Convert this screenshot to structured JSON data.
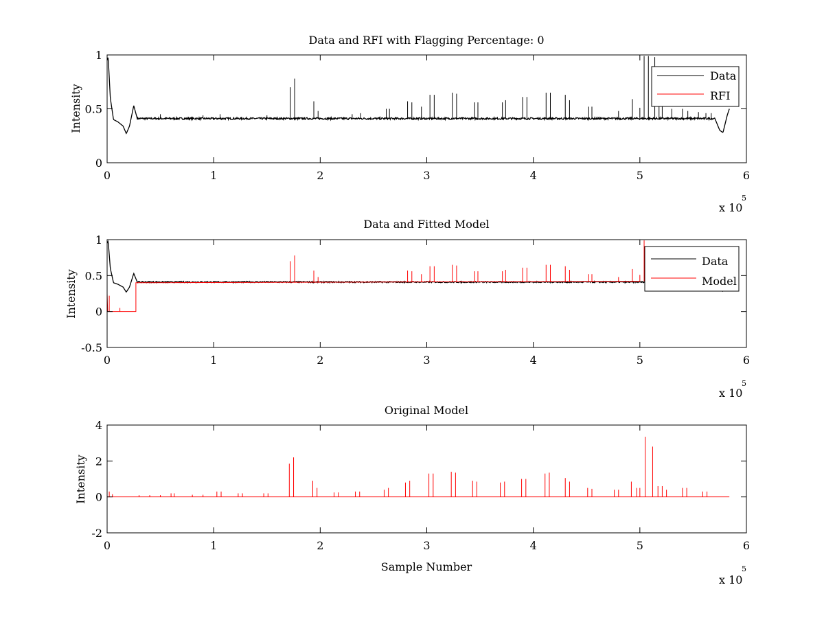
{
  "chart_data": [
    {
      "type": "line",
      "title": "Data and RFI with Flagging Percentage: 0",
      "xlabel": "",
      "ylabel": "Intensity",
      "xlim": [
        0,
        6
      ],
      "ylim": [
        0,
        1
      ],
      "x_scale_note": "x 10",
      "x_scale_exponent": "5",
      "xticks": [
        "0",
        "1",
        "2",
        "3",
        "4",
        "5",
        "6"
      ],
      "yticks": [
        "0",
        "0.5",
        "1"
      ],
      "legend": {
        "placement": "top-right",
        "entries": [
          "Data",
          "RFI"
        ]
      },
      "grid": false,
      "series": [
        {
          "name": "Data",
          "color": "#000000",
          "baseline": [
            [
              0,
              0.95
            ],
            [
              0.01,
              0.98
            ],
            [
              0.03,
              0.6
            ],
            [
              0.06,
              0.4
            ],
            [
              0.1,
              0.38
            ],
            [
              0.15,
              0.34
            ],
            [
              0.18,
              0.27
            ],
            [
              0.21,
              0.34
            ],
            [
              0.25,
              0.53
            ],
            [
              0.28,
              0.42
            ],
            [
              5.7,
              0.42
            ],
            [
              5.75,
              0.3
            ],
            [
              5.78,
              0.28
            ],
            [
              5.82,
              0.44
            ],
            [
              5.84,
              0.5
            ]
          ],
          "noise_level": 0.41,
          "spikes": [
            [
              0.5,
              0.45
            ],
            [
              0.9,
              0.44
            ],
            [
              1.06,
              0.45
            ],
            [
              1.5,
              0.44
            ],
            [
              1.72,
              0.7
            ],
            [
              1.76,
              0.78
            ],
            [
              1.94,
              0.57
            ],
            [
              1.98,
              0.48
            ],
            [
              2.3,
              0.45
            ],
            [
              2.38,
              0.46
            ],
            [
              2.62,
              0.5
            ],
            [
              2.65,
              0.5
            ],
            [
              2.82,
              0.57
            ],
            [
              2.86,
              0.56
            ],
            [
              2.95,
              0.52
            ],
            [
              3.03,
              0.63
            ],
            [
              3.07,
              0.63
            ],
            [
              3.24,
              0.65
            ],
            [
              3.28,
              0.64
            ],
            [
              3.45,
              0.56
            ],
            [
              3.48,
              0.56
            ],
            [
              3.71,
              0.56
            ],
            [
              3.74,
              0.58
            ],
            [
              3.9,
              0.61
            ],
            [
              3.94,
              0.61
            ],
            [
              4.12,
              0.65
            ],
            [
              4.16,
              0.65
            ],
            [
              4.3,
              0.63
            ],
            [
              4.34,
              0.58
            ],
            [
              4.52,
              0.52
            ],
            [
              4.55,
              0.52
            ],
            [
              4.8,
              0.48
            ],
            [
              4.93,
              0.59
            ],
            [
              5.0,
              0.51
            ],
            [
              5.04,
              0.99
            ],
            [
              5.08,
              0.99
            ],
            [
              5.14,
              0.98
            ],
            [
              5.18,
              0.54
            ],
            [
              5.21,
              0.54
            ],
            [
              5.3,
              0.5
            ],
            [
              5.4,
              0.5
            ],
            [
              5.45,
              0.48
            ],
            [
              5.55,
              0.47
            ],
            [
              5.62,
              0.46
            ],
            [
              5.67,
              0.46
            ]
          ]
        },
        {
          "name": "RFI",
          "color": "#ff0000",
          "values": []
        }
      ]
    },
    {
      "type": "line",
      "title": "Data and Fitted Model",
      "xlabel": "",
      "ylabel": "Intensity",
      "xlim": [
        0,
        6
      ],
      "ylim": [
        -0.5,
        1
      ],
      "x_scale_note": "x 10",
      "x_scale_exponent": "5",
      "xticks": [
        "0",
        "1",
        "2",
        "3",
        "4",
        "5",
        "6"
      ],
      "yticks": [
        "-0.5",
        "0",
        "0.5",
        "1"
      ],
      "legend": {
        "placement": "top-right",
        "entries": [
          "Data",
          "Model"
        ]
      },
      "grid": false,
      "series": [
        {
          "name": "Data",
          "color": "#000000",
          "baseline": [
            [
              0,
              0.95
            ],
            [
              0.01,
              0.98
            ],
            [
              0.03,
              0.6
            ],
            [
              0.06,
              0.4
            ],
            [
              0.1,
              0.38
            ],
            [
              0.15,
              0.34
            ],
            [
              0.18,
              0.27
            ],
            [
              0.21,
              0.34
            ],
            [
              0.25,
              0.53
            ],
            [
              0.28,
              0.42
            ],
            [
              5.7,
              0.42
            ],
            [
              5.75,
              0.3
            ],
            [
              5.78,
              0.28
            ],
            [
              5.82,
              0.44
            ],
            [
              5.84,
              0.5
            ]
          ],
          "noise_level": 0.41
        },
        {
          "name": "Model",
          "color": "#ff0000",
          "baseline": [
            [
              0,
              0.25
            ],
            [
              0.005,
              0.0
            ],
            [
              0.27,
              0.0
            ],
            [
              0.27,
              0.4
            ],
            [
              5.0,
              0.42
            ]
          ],
          "spikes": [
            [
              0.02,
              0.22
            ],
            [
              0.12,
              0.05
            ],
            [
              1.72,
              0.7
            ],
            [
              1.76,
              0.78
            ],
            [
              1.94,
              0.57
            ],
            [
              1.98,
              0.48
            ],
            [
              2.82,
              0.57
            ],
            [
              2.86,
              0.56
            ],
            [
              2.95,
              0.52
            ],
            [
              3.03,
              0.63
            ],
            [
              3.07,
              0.63
            ],
            [
              3.24,
              0.65
            ],
            [
              3.28,
              0.64
            ],
            [
              3.45,
              0.56
            ],
            [
              3.48,
              0.56
            ],
            [
              3.71,
              0.56
            ],
            [
              3.74,
              0.58
            ],
            [
              3.9,
              0.61
            ],
            [
              3.94,
              0.61
            ],
            [
              4.12,
              0.65
            ],
            [
              4.16,
              0.65
            ],
            [
              4.3,
              0.63
            ],
            [
              4.34,
              0.58
            ],
            [
              4.52,
              0.52
            ],
            [
              4.55,
              0.52
            ],
            [
              4.8,
              0.48
            ],
            [
              4.93,
              0.59
            ],
            [
              5.0,
              0.51
            ],
            [
              5.04,
              0.99
            ]
          ]
        }
      ]
    },
    {
      "type": "line",
      "title": "Original Model",
      "xlabel": "Sample Number",
      "ylabel": "Intensity",
      "xlim": [
        0,
        6
      ],
      "ylim": [
        -2,
        4
      ],
      "x_scale_note": "x 10",
      "x_scale_exponent": "5",
      "xticks": [
        "0",
        "1",
        "2",
        "3",
        "4",
        "5",
        "6"
      ],
      "yticks": [
        "-2",
        "0",
        "2",
        "4"
      ],
      "grid": false,
      "series": [
        {
          "color": "#ff0000",
          "baseline_value": 0,
          "x_extent": [
            0,
            5.84
          ],
          "spikes": [
            [
              0.02,
              0.3
            ],
            [
              0.05,
              0.15
            ],
            [
              0.3,
              0.1
            ],
            [
              0.4,
              0.1
            ],
            [
              0.5,
              0.1
            ],
            [
              0.6,
              0.2
            ],
            [
              0.63,
              0.2
            ],
            [
              0.8,
              0.12
            ],
            [
              0.9,
              0.12
            ],
            [
              1.03,
              0.3
            ],
            [
              1.07,
              0.3
            ],
            [
              1.23,
              0.2
            ],
            [
              1.27,
              0.2
            ],
            [
              1.47,
              0.2
            ],
            [
              1.51,
              0.2
            ],
            [
              1.71,
              1.85
            ],
            [
              1.75,
              2.2
            ],
            [
              1.93,
              0.9
            ],
            [
              1.97,
              0.5
            ],
            [
              2.13,
              0.25
            ],
            [
              2.17,
              0.25
            ],
            [
              2.33,
              0.3
            ],
            [
              2.37,
              0.3
            ],
            [
              2.6,
              0.4
            ],
            [
              2.64,
              0.5
            ],
            [
              2.8,
              0.8
            ],
            [
              2.84,
              0.9
            ],
            [
              3.02,
              1.3
            ],
            [
              3.06,
              1.3
            ],
            [
              3.23,
              1.4
            ],
            [
              3.27,
              1.35
            ],
            [
              3.43,
              0.9
            ],
            [
              3.47,
              0.85
            ],
            [
              3.69,
              0.8
            ],
            [
              3.73,
              0.85
            ],
            [
              3.89,
              1.0
            ],
            [
              3.93,
              1.0
            ],
            [
              4.11,
              1.3
            ],
            [
              4.15,
              1.35
            ],
            [
              4.3,
              1.05
            ],
            [
              4.34,
              0.85
            ],
            [
              4.51,
              0.5
            ],
            [
              4.55,
              0.45
            ],
            [
              4.76,
              0.4
            ],
            [
              4.8,
              0.4
            ],
            [
              4.92,
              0.85
            ],
            [
              4.97,
              0.5
            ],
            [
              5.0,
              0.5
            ],
            [
              5.05,
              3.35
            ],
            [
              5.12,
              2.8
            ],
            [
              5.17,
              0.6
            ],
            [
              5.21,
              0.6
            ],
            [
              5.25,
              0.4
            ],
            [
              5.4,
              0.5
            ],
            [
              5.44,
              0.5
            ],
            [
              5.59,
              0.3
            ],
            [
              5.63,
              0.3
            ]
          ]
        }
      ]
    }
  ]
}
